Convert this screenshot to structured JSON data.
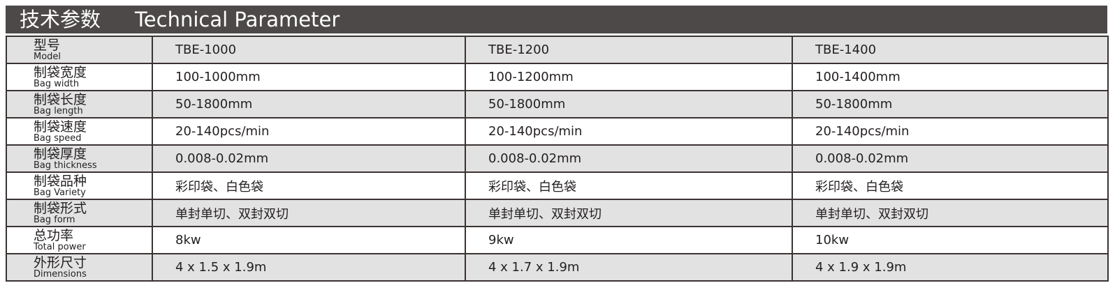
{
  "header": {
    "title_cn": "技术参数",
    "title_en": "Technical Parameter"
  },
  "table": {
    "rows": [
      {
        "cn": "型号",
        "en": "Model",
        "values": [
          "TBE-1000",
          "TBE-1200",
          "TBE-1400"
        ]
      },
      {
        "cn": "制袋宽度",
        "en": "Bag width",
        "values": [
          "100-1000mm",
          "100-1200mm",
          "100-1400mm"
        ]
      },
      {
        "cn": "制袋长度",
        "en": "Bag length",
        "values": [
          "50-1800mm",
          "50-1800mm",
          "50-1800mm"
        ]
      },
      {
        "cn": "制袋速度",
        "en": "Bag speed",
        "values": [
          "20-140pcs/min",
          "20-140pcs/min",
          "20-140pcs/min"
        ]
      },
      {
        "cn": "制袋厚度",
        "en": "Bag thickness",
        "values": [
          "0.008-0.02mm",
          "0.008-0.02mm",
          "0.008-0.02mm"
        ]
      },
      {
        "cn": "制袋品种",
        "en": "Bag Variety",
        "values": [
          "彩印袋、白色袋",
          "彩印袋、白色袋",
          "彩印袋、白色袋"
        ]
      },
      {
        "cn": "制袋形式",
        "en": "Bag form",
        "values": [
          "单封单切、双封双切",
          "单封单切、双封双切",
          "单封单切、双封双切"
        ]
      },
      {
        "cn": "总功率",
        "en": "Total power",
        "values": [
          "8kw",
          "9kw",
          "10kw"
        ]
      },
      {
        "cn": "外形尺寸",
        "en": "Dimensions",
        "values": [
          "4 x 1.5 x 1.9m",
          "4 x 1.7 x 1.9m",
          "4 x 1.9 x 1.9m"
        ]
      }
    ]
  },
  "colors": {
    "header_bg": "#4d4948",
    "alt_row": "#e2e2e2",
    "border": "#3a3332"
  }
}
